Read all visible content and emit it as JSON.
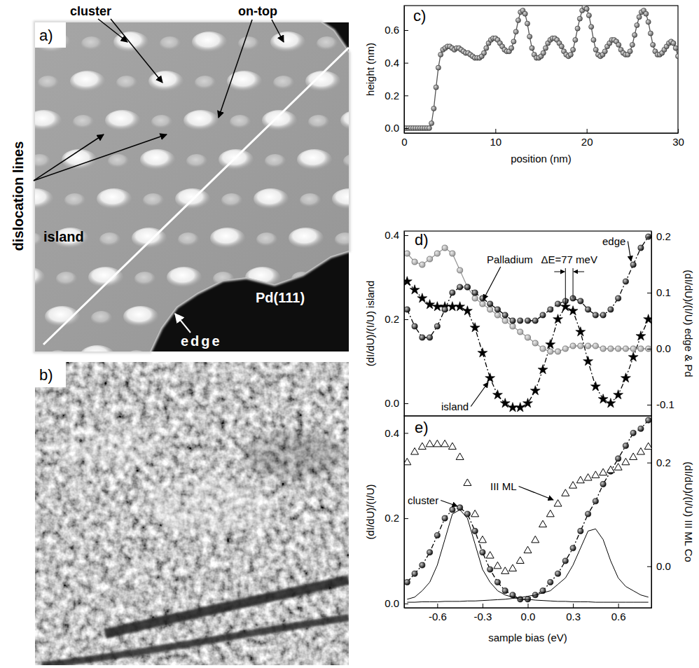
{
  "images": [
    {
      "label": "a)",
      "annotations": [
        "cluster",
        "on-top",
        "dislocation lines",
        "island",
        "Pd(111)",
        "edge"
      ]
    },
    {
      "label": "b)"
    }
  ],
  "chart_data": [
    {
      "type": "line",
      "label": "c)",
      "x": [
        0,
        0.25,
        0.5,
        0.75,
        1,
        1.25,
        1.5,
        1.75,
        2,
        2.25,
        2.5,
        2.75,
        3,
        3.25,
        3.5,
        3.75,
        4,
        4.25,
        4.5,
        4.75,
        5,
        5.25,
        5.5,
        5.75,
        6,
        6.25,
        6.5,
        6.75,
        7,
        7.25,
        7.5,
        7.75,
        8,
        8.25,
        8.5,
        8.75,
        9,
        9.25,
        9.5,
        9.75,
        10,
        10.25,
        10.5,
        10.75,
        11,
        11.25,
        11.5,
        11.75,
        12,
        12.25,
        12.5,
        12.75,
        13,
        13.25,
        13.5,
        13.75,
        14,
        14.25,
        14.5,
        14.75,
        15,
        15.25,
        15.5,
        15.75,
        16,
        16.25,
        16.5,
        16.75,
        17,
        17.25,
        17.5,
        17.75,
        18,
        18.25,
        18.5,
        18.75,
        19,
        19.25,
        19.5,
        19.75,
        20,
        20.25,
        20.5,
        20.75,
        21,
        21.25,
        21.5,
        21.75,
        22,
        22.25,
        22.5,
        22.75,
        23,
        23.25,
        23.5,
        23.75,
        24,
        24.25,
        24.5,
        24.75,
        25,
        25.25,
        25.5,
        25.75,
        26,
        26.25,
        26.5,
        26.75,
        27,
        27.25,
        27.5,
        27.75,
        28,
        28.25,
        28.5,
        28.75,
        29,
        29.25,
        29.5,
        29.75,
        30
      ],
      "series": [
        {
          "color": "#555555",
          "marker": "circle",
          "line_style": "solid",
          "values": [
            0,
            0,
            0,
            0,
            0,
            0,
            0,
            0,
            0,
            0,
            0,
            0,
            0.03,
            0.12,
            0.25,
            0.37,
            0.45,
            0.48,
            0.49,
            0.5,
            0.5,
            0.49,
            0.48,
            0.49,
            0.49,
            0.48,
            0.47,
            0.46,
            0.46,
            0.45,
            0.44,
            0.43,
            0.43,
            0.43,
            0.44,
            0.46,
            0.49,
            0.52,
            0.54,
            0.55,
            0.55,
            0.54,
            0.52,
            0.5,
            0.48,
            0.47,
            0.47,
            0.49,
            0.53,
            0.59,
            0.66,
            0.71,
            0.72,
            0.7,
            0.64,
            0.56,
            0.49,
            0.45,
            0.43,
            0.43,
            0.44,
            0.46,
            0.49,
            0.52,
            0.54,
            0.55,
            0.55,
            0.54,
            0.52,
            0.5,
            0.47,
            0.45,
            0.44,
            0.45,
            0.48,
            0.54,
            0.61,
            0.67,
            0.72,
            0.74,
            0.73,
            0.69,
            0.62,
            0.54,
            0.48,
            0.45,
            0.44,
            0.45,
            0.47,
            0.5,
            0.52,
            0.54,
            0.54,
            0.53,
            0.51,
            0.48,
            0.46,
            0.45,
            0.45,
            0.47,
            0.51,
            0.57,
            0.63,
            0.68,
            0.71,
            0.72,
            0.7,
            0.65,
            0.58,
            0.51,
            0.47,
            0.45,
            0.45,
            0.46,
            0.48,
            0.5,
            0.52,
            0.53,
            0.52,
            0.49,
            0.44
          ]
        }
      ],
      "xlim": [
        0,
        30
      ],
      "ylim": [
        -0.03,
        0.75
      ],
      "xticks": [
        0,
        10,
        20,
        30
      ],
      "yticks": [
        {
          "value": 0,
          "label": "0.0"
        },
        0.2,
        0.4,
        0.6
      ],
      "x_label": "position (nm)",
      "y_label": "height (nm)"
    },
    {
      "type": "line",
      "label": "d)",
      "x": [
        -0.8,
        -0.75,
        -0.7,
        -0.65,
        -0.6,
        -0.55,
        -0.5,
        -0.45,
        -0.4,
        -0.35,
        -0.3,
        -0.25,
        -0.2,
        -0.15,
        -0.1,
        -0.05,
        0,
        0.05,
        0.1,
        0.15,
        0.2,
        0.25,
        0.3,
        0.35,
        0.4,
        0.45,
        0.5,
        0.55,
        0.6,
        0.65,
        0.7,
        0.75,
        0.8
      ],
      "series": [
        {
          "name": "island",
          "color": "#000000",
          "marker": "star",
          "line_style": "dashdot",
          "values": [
            0.29,
            0.27,
            0.25,
            0.235,
            0.23,
            0.23,
            0.23,
            0.23,
            0.22,
            0.18,
            0.12,
            0.06,
            0.02,
            0,
            -0.01,
            -0.01,
            0,
            0.03,
            0.08,
            0.14,
            0.2,
            0.23,
            0.22,
            0.17,
            0.1,
            0.04,
            0.01,
            0,
            0.02,
            0.06,
            0.11,
            0.16,
            0.2
          ]
        },
        {
          "name": "Palladium",
          "color": "#999999",
          "marker": "circle",
          "line_style": "solid",
          "axis": "y2",
          "values": [
            0.17,
            0.155,
            0.15,
            0.16,
            0.17,
            0.18,
            0.17,
            0.14,
            0.11,
            0.09,
            0.08,
            0.07,
            0.06,
            0.05,
            0.04,
            0.03,
            0.02,
            0.01,
            0,
            -0.005,
            -0.005,
            0,
            0.005,
            0.005,
            0.005,
            0.005,
            0,
            0,
            0,
            0,
            0,
            0,
            0
          ]
        },
        {
          "name": "edge",
          "color": "#000000",
          "marker": "circle",
          "line_style": "dashdot",
          "axis": "y2",
          "values": [
            0.07,
            0.04,
            0.02,
            0.02,
            0.04,
            0.07,
            0.1,
            0.11,
            0.11,
            0.1,
            0.09,
            0.08,
            0.07,
            0.06,
            0.05,
            0.05,
            0.05,
            0.05,
            0.06,
            0.07,
            0.08,
            0.085,
            0.09,
            0.085,
            0.07,
            0.06,
            0.06,
            0.07,
            0.09,
            0.12,
            0.15,
            0.18,
            0.2
          ]
        }
      ],
      "xlim": [
        -0.82,
        0.82
      ],
      "ylim": [
        -0.03,
        0.41
      ],
      "yticks": [
        {
          "value": 0,
          "label": "0.0"
        },
        0.2,
        0.4
      ],
      "y2lim": [
        -0.12,
        0.21
      ],
      "y2ticks": [
        -0.1,
        {
          "value": 0,
          "label": "0.0"
        },
        0.1,
        0.2
      ],
      "y_label": "(dI/dU)/(I/U) island",
      "y2_label": "(dI/dU)/(I/U) edge & Pd",
      "annotations": [
        "ΔE=77 meV"
      ]
    },
    {
      "type": "line",
      "label": "e)",
      "x": [
        -0.8,
        -0.75,
        -0.7,
        -0.65,
        -0.6,
        -0.55,
        -0.5,
        -0.45,
        -0.4,
        -0.35,
        -0.3,
        -0.25,
        -0.2,
        -0.15,
        -0.1,
        -0.05,
        0,
        0.05,
        0.1,
        0.15,
        0.2,
        0.25,
        0.3,
        0.35,
        0.4,
        0.45,
        0.5,
        0.55,
        0.6,
        0.65,
        0.7,
        0.75,
        0.8
      ],
      "series": [
        {
          "name": "cluster",
          "color": "#000000",
          "marker": "circle",
          "line_style": "dashdot",
          "values": [
            0.05,
            0.07,
            0.09,
            0.12,
            0.16,
            0.2,
            0.22,
            0.225,
            0.21,
            0.17,
            0.12,
            0.08,
            0.05,
            0.03,
            0.02,
            0.01,
            0.01,
            0.02,
            0.03,
            0.05,
            0.07,
            0.1,
            0.13,
            0.17,
            0.21,
            0.24,
            0.28,
            0.31,
            0.34,
            0.37,
            0.4,
            0.41,
            0.43
          ]
        },
        {
          "name": "III ML",
          "color": "#000000",
          "marker": "triangle-open",
          "line_style": "none",
          "axis": "y2",
          "values": [
            0.2,
            0.22,
            0.23,
            0.235,
            0.235,
            0.235,
            0.23,
            0.21,
            0.16,
            0.1,
            0.05,
            0.02,
            0,
            -0.01,
            -0.005,
            0.01,
            0.03,
            0.05,
            0.08,
            0.1,
            0.12,
            0.14,
            0.155,
            0.165,
            0.17,
            0.175,
            0.18,
            0.185,
            0.19,
            0.2,
            0.21,
            0.22,
            0.23
          ]
        },
        {
          "color": "#000000",
          "marker": "none",
          "line_style": "solid",
          "values": [
            0.01,
            0.015,
            0.03,
            0.05,
            0.09,
            0.15,
            0.21,
            0.22,
            0.2,
            0.14,
            0.08,
            0.05,
            0.03,
            0.02,
            0.015,
            0.01,
            0.01,
            0.008,
            0.007,
            0.006,
            0.005,
            0.005,
            0.004,
            0.004,
            0.004,
            0.003,
            0.003,
            0.003,
            0.003,
            0.003,
            0.003,
            0.003,
            0.003
          ]
        },
        {
          "color": "#000000",
          "marker": "none",
          "line_style": "solid",
          "values": [
            0.003,
            0.003,
            0.004,
            0.004,
            0.004,
            0.005,
            0.005,
            0.005,
            0.006,
            0.006,
            0.007,
            0.008,
            0.009,
            0.01,
            0.012,
            0.014,
            0.017,
            0.02,
            0.025,
            0.03,
            0.045,
            0.06,
            0.09,
            0.13,
            0.17,
            0.175,
            0.15,
            0.1,
            0.06,
            0.04,
            0.03,
            0.02,
            0.015
          ]
        }
      ],
      "xlim": [
        -0.82,
        0.82
      ],
      "xticks": [
        -0.6,
        -0.3,
        {
          "value": 0,
          "label": "0.0"
        },
        0.3,
        0.6
      ],
      "ylim": [
        -0.01,
        0.44
      ],
      "yticks": [
        {
          "value": 0,
          "label": "0.0"
        },
        0.2,
        0.4
      ],
      "y2lim": [
        -0.08,
        0.29
      ],
      "y2ticks": [
        {
          "value": 0,
          "label": "0.0"
        },
        0.2
      ],
      "x_label": "sample bias (eV)",
      "y_label": "(dI/dU)/(I/U)",
      "y2_label": "(dI/dU)/(I/U) III ML Co"
    }
  ]
}
